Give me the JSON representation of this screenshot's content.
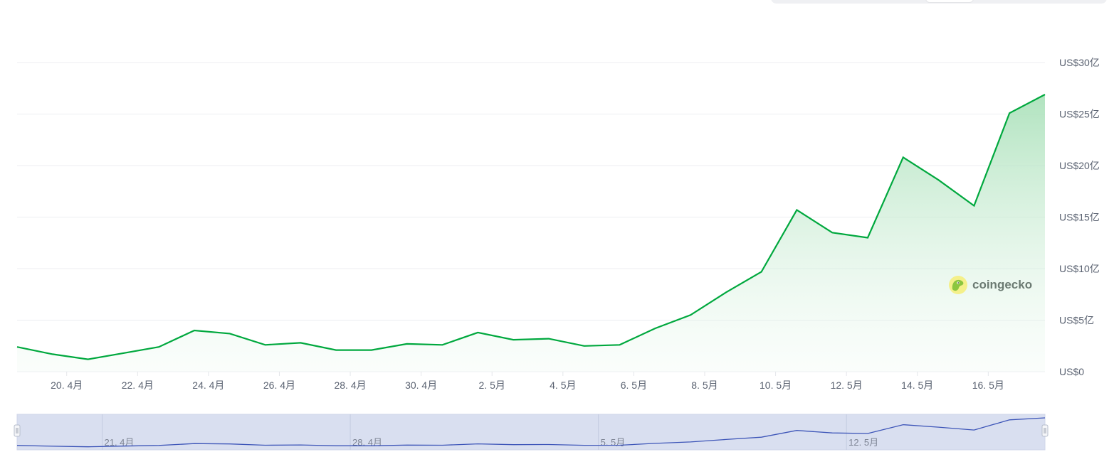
{
  "chart_data": {
    "type": "area",
    "x": [
      "04-18",
      "04-19",
      "04-20",
      "04-21",
      "04-22",
      "04-23",
      "04-24",
      "04-25",
      "04-26",
      "04-27",
      "04-28",
      "04-29",
      "04-30",
      "05-01",
      "05-02",
      "05-03",
      "05-04",
      "05-05",
      "05-06",
      "05-07",
      "05-08",
      "05-09",
      "05-10",
      "05-11",
      "05-12",
      "05-13",
      "05-14",
      "05-15",
      "05-16",
      "05-17"
    ],
    "values": [
      2.4,
      1.7,
      1.2,
      1.8,
      2.4,
      4.0,
      3.7,
      2.6,
      2.8,
      2.1,
      2.1,
      2.7,
      2.6,
      3.8,
      3.1,
      3.2,
      2.5,
      2.6,
      4.2,
      5.5,
      7.7,
      9.7,
      15.7,
      13.5,
      13.0,
      20.8,
      18.6,
      16.1,
      25.1,
      26.9
    ],
    "unit": "亿 USD",
    "ylim": [
      0,
      30
    ],
    "yticks": [
      0,
      5,
      10,
      15,
      20,
      25,
      30
    ],
    "ytick_labels": [
      "US$0",
      "US$5亿",
      "US$10亿",
      "US$15亿",
      "US$20亿",
      "US$25亿",
      "US$30亿"
    ],
    "xtick_labels": [
      "20. 4月",
      "22. 4月",
      "24. 4月",
      "26. 4月",
      "28. 4月",
      "30. 4月",
      "2. 5月",
      "4. 5月",
      "6. 5月",
      "8. 5月",
      "10. 5月",
      "12. 5月",
      "14. 5月",
      "16. 5月"
    ],
    "navigator_labels": [
      "21. 4月",
      "28. 4月",
      "5. 5月",
      "12. 5月"
    ],
    "grid": true,
    "line_color": "#00a83e",
    "fill_color": "#b9e6c6",
    "navigator_color": "#3d55b8",
    "navigator_bg": "#d9dff0"
  },
  "watermark": {
    "text": "coingecko"
  }
}
